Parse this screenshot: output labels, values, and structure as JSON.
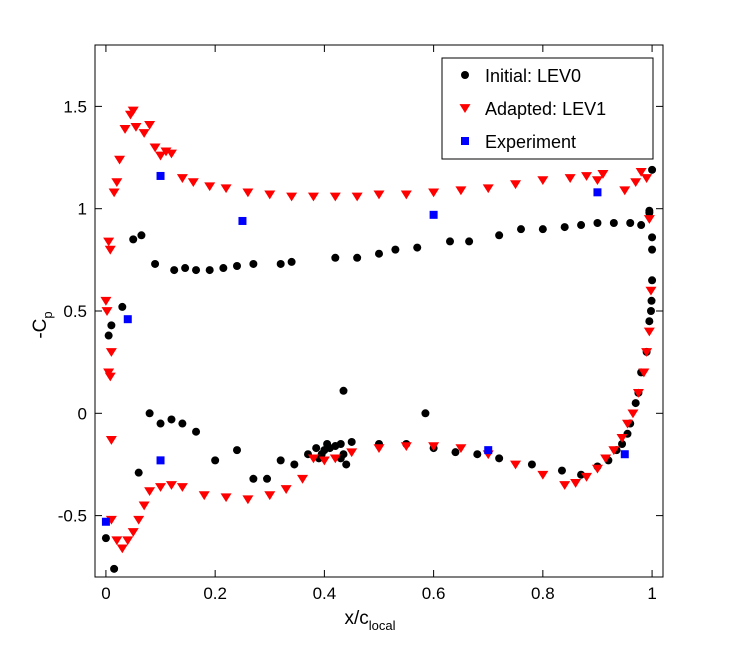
{
  "chart_data": {
    "type": "scatter",
    "xlabel": "x/c",
    "xlabel_sub": "local",
    "ylabel": "-C",
    "ylabel_sub": "p",
    "xlim": [
      -0.02,
      1.02
    ],
    "ylim": [
      -0.8,
      1.8
    ],
    "xticks": [
      0,
      0.2,
      0.4,
      0.6,
      0.8,
      1
    ],
    "xtick_labels": [
      "0",
      "0.2",
      "0.4",
      "0.6",
      "0.8",
      "1"
    ],
    "yticks": [
      -0.5,
      0,
      0.5,
      1,
      1.5
    ],
    "ytick_labels": [
      "-0.5",
      "0",
      "0.5",
      "1",
      "1.5"
    ],
    "grid": false,
    "legend_position": "top-right",
    "series": [
      {
        "name": "Initial: LEV0",
        "marker": "circle",
        "color": "#000000",
        "points": [
          [
            0.0,
            -0.61
          ],
          [
            0.005,
            0.38
          ],
          [
            0.01,
            0.43
          ],
          [
            0.015,
            -0.76
          ],
          [
            0.03,
            0.52
          ],
          [
            0.05,
            0.85
          ],
          [
            0.065,
            0.87
          ],
          [
            0.09,
            0.73
          ],
          [
            0.125,
            0.7
          ],
          [
            0.145,
            0.71
          ],
          [
            0.165,
            0.7
          ],
          [
            0.19,
            0.7
          ],
          [
            0.215,
            0.71
          ],
          [
            0.24,
            0.72
          ],
          [
            0.27,
            0.73
          ],
          [
            0.32,
            0.73
          ],
          [
            0.34,
            0.74
          ],
          [
            0.42,
            0.76
          ],
          [
            0.46,
            0.76
          ],
          [
            0.5,
            0.78
          ],
          [
            0.53,
            0.8
          ],
          [
            0.57,
            0.81
          ],
          [
            0.63,
            0.84
          ],
          [
            0.665,
            0.84
          ],
          [
            0.72,
            0.87
          ],
          [
            0.76,
            0.9
          ],
          [
            0.8,
            0.9
          ],
          [
            0.84,
            0.91
          ],
          [
            0.87,
            0.92
          ],
          [
            0.9,
            0.93
          ],
          [
            0.93,
            0.93
          ],
          [
            0.96,
            0.93
          ],
          [
            0.98,
            0.92
          ],
          [
            0.995,
            0.98
          ],
          [
            1.0,
            0.86
          ],
          [
            1.0,
            0.8
          ],
          [
            1.0,
            0.65
          ],
          [
            0.999,
            0.55
          ],
          [
            0.998,
            0.5
          ],
          [
            0.995,
            0.45
          ],
          [
            0.99,
            0.3
          ],
          [
            0.98,
            0.2
          ],
          [
            0.975,
            0.1
          ],
          [
            0.97,
            0.05
          ],
          [
            0.96,
            -0.05
          ],
          [
            0.955,
            -0.1
          ],
          [
            0.945,
            -0.15
          ],
          [
            0.935,
            -0.18
          ],
          [
            0.92,
            -0.23
          ],
          [
            0.9,
            -0.26
          ],
          [
            0.87,
            -0.3
          ],
          [
            0.835,
            -0.28
          ],
          [
            0.78,
            -0.25
          ],
          [
            0.72,
            -0.22
          ],
          [
            0.68,
            -0.2
          ],
          [
            0.64,
            -0.19
          ],
          [
            0.6,
            -0.17
          ],
          [
            0.55,
            -0.15
          ],
          [
            0.5,
            -0.15
          ],
          [
            0.45,
            -0.14
          ],
          [
            0.43,
            -0.15
          ],
          [
            0.42,
            -0.16
          ],
          [
            0.41,
            -0.17
          ],
          [
            0.405,
            -0.15
          ],
          [
            0.4,
            -0.18
          ],
          [
            0.395,
            -0.2
          ],
          [
            0.39,
            -0.22
          ],
          [
            0.385,
            -0.17
          ],
          [
            0.43,
            -0.22
          ],
          [
            0.435,
            -0.2
          ],
          [
            0.44,
            -0.25
          ],
          [
            0.435,
            0.11
          ],
          [
            0.585,
            0.0
          ],
          [
            0.08,
            0.0
          ],
          [
            0.1,
            -0.05
          ],
          [
            0.12,
            -0.03
          ],
          [
            0.14,
            -0.05
          ],
          [
            0.165,
            -0.09
          ],
          [
            0.2,
            -0.23
          ],
          [
            0.24,
            -0.18
          ],
          [
            0.27,
            -0.32
          ],
          [
            0.295,
            -0.32
          ],
          [
            0.32,
            -0.23
          ],
          [
            0.345,
            -0.25
          ],
          [
            0.37,
            -0.2
          ],
          [
            0.06,
            -0.29
          ],
          [
            1.0,
            1.19
          ],
          [
            0.995,
            0.99
          ]
        ]
      },
      {
        "name": "Adapted: LEV1",
        "marker": "triangle-down",
        "color": "#ff0000",
        "points": [
          [
            0.0,
            0.55
          ],
          [
            0.002,
            0.5
          ],
          [
            0.005,
            0.84
          ],
          [
            0.008,
            0.8
          ],
          [
            0.01,
            0.3
          ],
          [
            0.005,
            0.2
          ],
          [
            0.008,
            0.18
          ],
          [
            0.01,
            -0.13
          ],
          [
            0.015,
            1.08
          ],
          [
            0.02,
            1.13
          ],
          [
            0.025,
            1.24
          ],
          [
            0.035,
            1.39
          ],
          [
            0.045,
            1.46
          ],
          [
            0.05,
            1.48
          ],
          [
            0.055,
            1.4
          ],
          [
            0.07,
            1.37
          ],
          [
            0.08,
            1.41
          ],
          [
            0.09,
            1.3
          ],
          [
            0.1,
            1.26
          ],
          [
            0.11,
            1.28
          ],
          [
            0.12,
            1.27
          ],
          [
            0.14,
            1.15
          ],
          [
            0.16,
            1.13
          ],
          [
            0.19,
            1.11
          ],
          [
            0.22,
            1.1
          ],
          [
            0.26,
            1.08
          ],
          [
            0.3,
            1.07
          ],
          [
            0.34,
            1.06
          ],
          [
            0.38,
            1.06
          ],
          [
            0.42,
            1.06
          ],
          [
            0.46,
            1.06
          ],
          [
            0.5,
            1.07
          ],
          [
            0.55,
            1.07
          ],
          [
            0.6,
            1.08
          ],
          [
            0.65,
            1.09
          ],
          [
            0.7,
            1.1
          ],
          [
            0.75,
            1.12
          ],
          [
            0.8,
            1.14
          ],
          [
            0.85,
            1.15
          ],
          [
            0.88,
            1.16
          ],
          [
            0.9,
            1.14
          ],
          [
            0.91,
            1.17
          ],
          [
            0.95,
            1.09
          ],
          [
            0.97,
            1.13
          ],
          [
            0.98,
            1.18
          ],
          [
            0.99,
            1.15
          ],
          [
            0.995,
            0.95
          ],
          [
            0.998,
            0.6
          ],
          [
            0.995,
            0.4
          ],
          [
            0.99,
            0.3
          ],
          [
            0.985,
            0.2
          ],
          [
            0.975,
            0.1
          ],
          [
            0.965,
            0.0
          ],
          [
            0.955,
            -0.05
          ],
          [
            0.945,
            -0.12
          ],
          [
            0.93,
            -0.18
          ],
          [
            0.915,
            -0.22
          ],
          [
            0.9,
            -0.27
          ],
          [
            0.88,
            -0.31
          ],
          [
            0.86,
            -0.34
          ],
          [
            0.84,
            -0.35
          ],
          [
            0.8,
            -0.3
          ],
          [
            0.75,
            -0.25
          ],
          [
            0.7,
            -0.2
          ],
          [
            0.65,
            -0.17
          ],
          [
            0.6,
            -0.16
          ],
          [
            0.55,
            -0.16
          ],
          [
            0.5,
            -0.17
          ],
          [
            0.45,
            -0.19
          ],
          [
            0.42,
            -0.22
          ],
          [
            0.4,
            -0.23
          ],
          [
            0.38,
            -0.22
          ],
          [
            0.36,
            -0.32
          ],
          [
            0.33,
            -0.37
          ],
          [
            0.3,
            -0.4
          ],
          [
            0.26,
            -0.42
          ],
          [
            0.22,
            -0.41
          ],
          [
            0.18,
            -0.4
          ],
          [
            0.14,
            -0.36
          ],
          [
            0.12,
            -0.35
          ],
          [
            0.1,
            -0.36
          ],
          [
            0.08,
            -0.38
          ],
          [
            0.07,
            -0.45
          ],
          [
            0.06,
            -0.52
          ],
          [
            0.05,
            -0.58
          ],
          [
            0.04,
            -0.62
          ],
          [
            0.03,
            -0.66
          ],
          [
            0.02,
            -0.62
          ],
          [
            0.01,
            -0.52
          ]
        ]
      },
      {
        "name": "Experiment",
        "marker": "square",
        "color": "#0000ff",
        "points": [
          [
            0.0,
            -0.53
          ],
          [
            0.04,
            0.46
          ],
          [
            0.1,
            1.16
          ],
          [
            0.1,
            -0.23
          ],
          [
            0.25,
            0.94
          ],
          [
            0.6,
            0.97
          ],
          [
            0.7,
            -0.18
          ],
          [
            0.9,
            1.08
          ],
          [
            0.95,
            -0.2
          ]
        ]
      }
    ]
  }
}
